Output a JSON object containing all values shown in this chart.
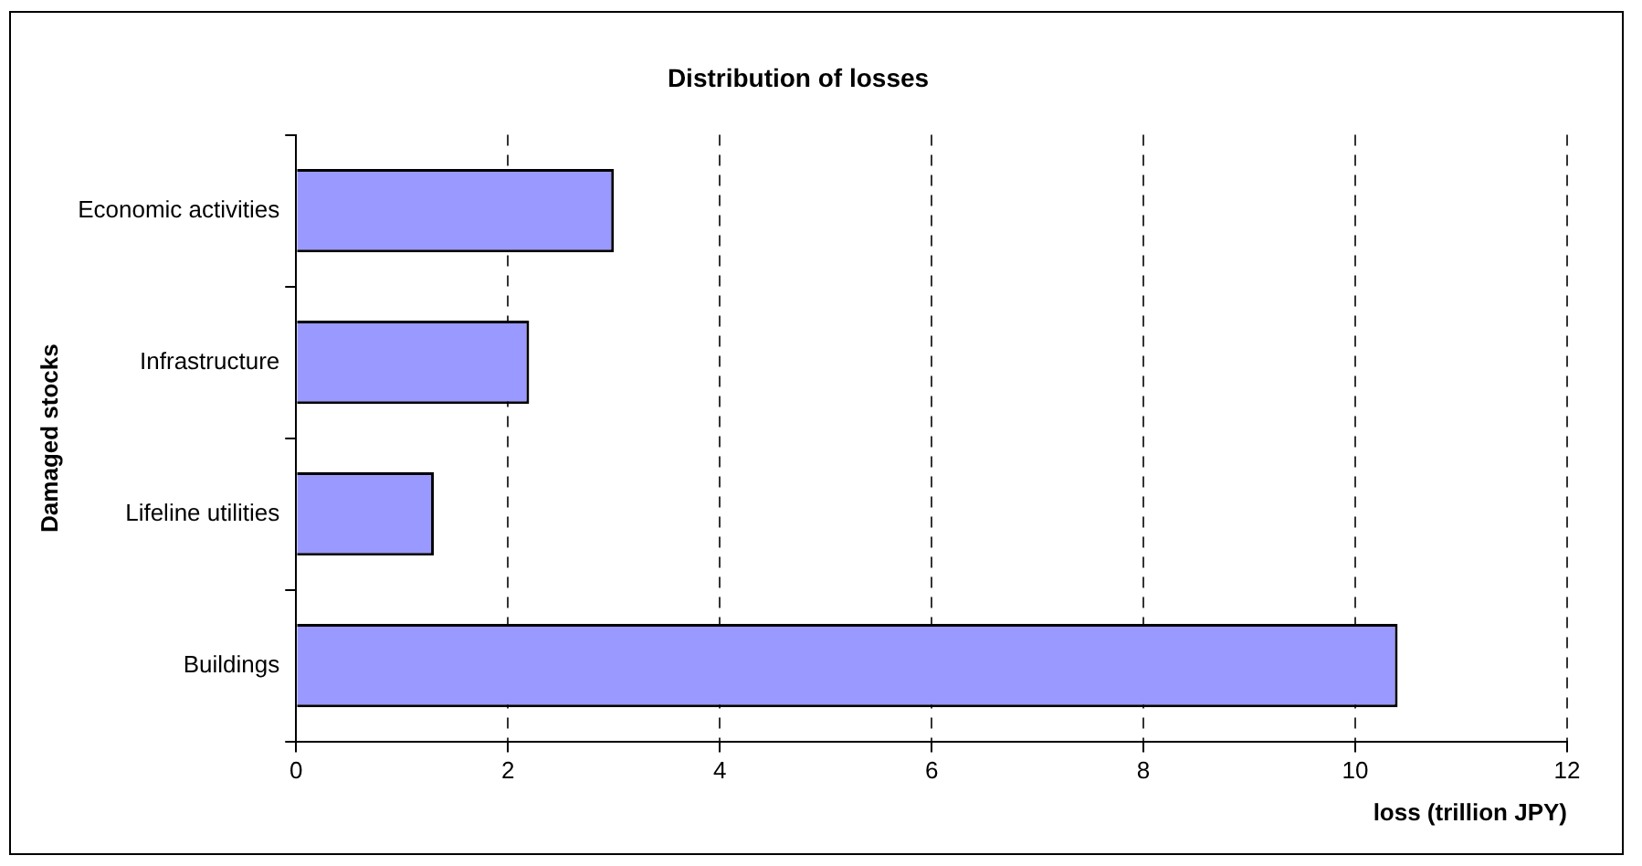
{
  "chart_data": {
    "type": "bar",
    "orientation": "horizontal",
    "title": "Distribution of losses",
    "xlabel": "loss (trillion JPY)",
    "ylabel": "Damaged stocks",
    "categories": [
      "Economic activities",
      "Infrastructure",
      "Lifeline utilities",
      "Buildings"
    ],
    "values": [
      3.0,
      2.2,
      1.3,
      10.4
    ],
    "color": "#9999ff",
    "xlim": [
      0,
      12
    ],
    "xticks": [
      0,
      2,
      4,
      6,
      8,
      10,
      12
    ],
    "grid": "x",
    "line_style": "dashed"
  }
}
